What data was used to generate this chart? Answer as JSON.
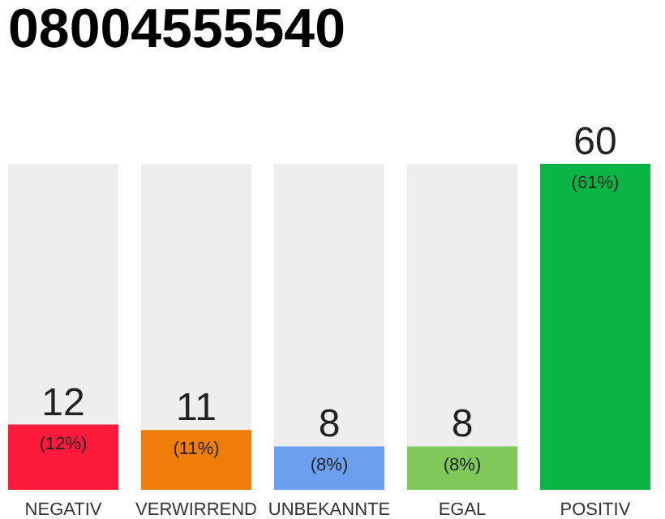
{
  "chart_data": {
    "type": "bar",
    "title": "08004555540",
    "categories": [
      "NEGATIV",
      "VERWIRREND",
      "UNBEKANNTE",
      "EGAL",
      "POSITIV"
    ],
    "values": [
      12,
      11,
      8,
      8,
      60
    ],
    "colors": [
      "#ff1a3c",
      "#f07d0a",
      "#6aa0ee",
      "#7ec95a",
      "#0bb444"
    ],
    "value_labels": [
      "12",
      "11",
      "8",
      "8",
      "60"
    ],
    "annotations": [
      {
        "text": "(12%)",
        "x": "NEGATIV",
        "y": 12
      },
      {
        "text": "(11%)",
        "x": "VERWIRREND",
        "y": 11
      },
      {
        "text": "(8%)",
        "x": "UNBEKANNTE",
        "y": 8
      },
      {
        "text": "(8%)",
        "x": "EGAL",
        "y": 8
      },
      {
        "text": "(61%)",
        "x": "POSITIV",
        "y": 60
      }
    ],
    "ylim": [
      0,
      60
    ],
    "tick_labels": "x"
  }
}
